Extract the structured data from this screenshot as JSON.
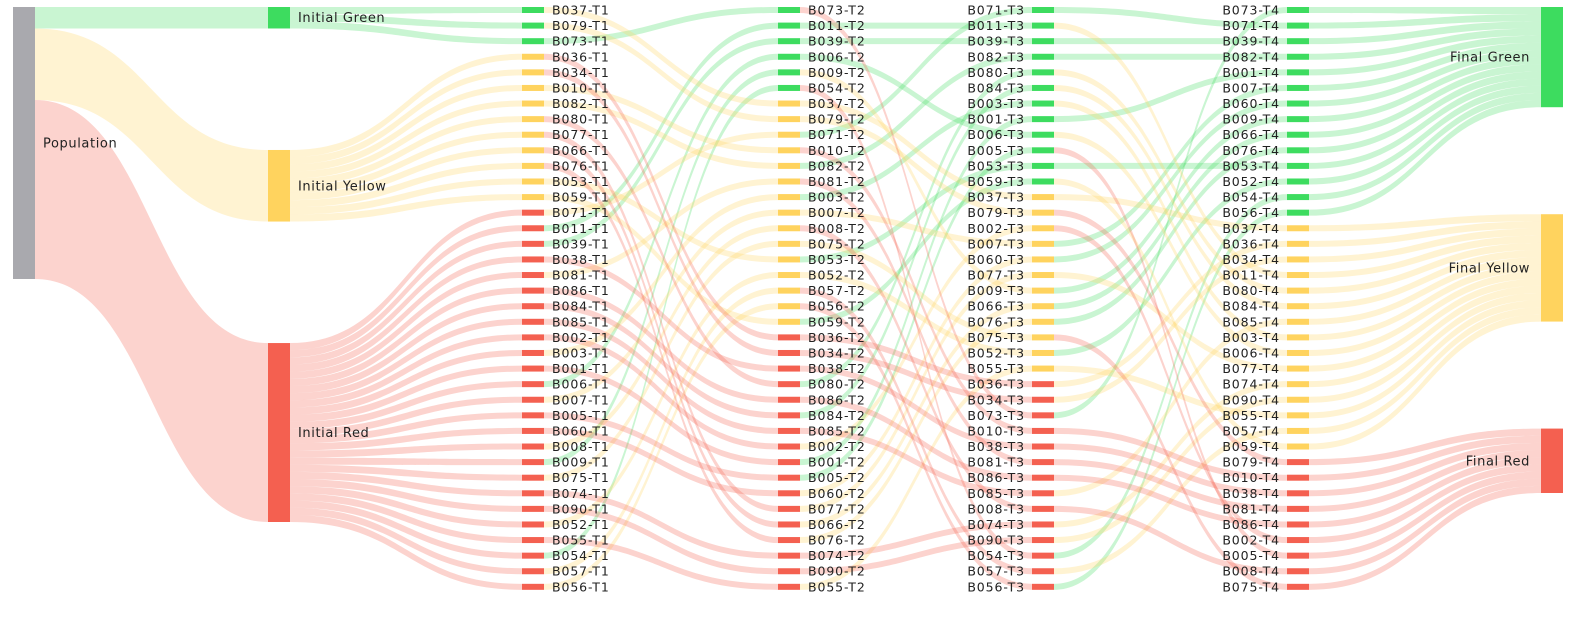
{
  "chart_data": {
    "type": "sankey",
    "columns": [
      {
        "nodes": [
          {
            "label": "Population",
            "value": 38,
            "color": "#a9a9ae"
          }
        ]
      },
      {
        "nodes": [
          {
            "label": "Initial Green",
            "value": 3,
            "color": "#3ddc5f"
          },
          {
            "label": "Initial Yellow",
            "value": 10,
            "color": "#ffd35e"
          },
          {
            "label": "Initial Red",
            "value": 25,
            "color": "#f46050"
          }
        ]
      },
      {
        "nodes": [
          {
            "label": "B037-T1",
            "value": 1,
            "color": "#3ddc5f"
          },
          {
            "label": "B079-T1",
            "value": 1,
            "color": "#3ddc5f"
          },
          {
            "label": "B073-T1",
            "value": 1,
            "color": "#3ddc5f"
          },
          {
            "label": "B036-T1",
            "value": 1,
            "color": "#ffd35e"
          },
          {
            "label": "B034-T1",
            "value": 1,
            "color": "#ffd35e"
          },
          {
            "label": "B010-T1",
            "value": 1,
            "color": "#ffd35e"
          },
          {
            "label": "B082-T1",
            "value": 1,
            "color": "#ffd35e"
          },
          {
            "label": "B080-T1",
            "value": 1,
            "color": "#ffd35e"
          },
          {
            "label": "B077-T1",
            "value": 1,
            "color": "#ffd35e"
          },
          {
            "label": "B066-T1",
            "value": 1,
            "color": "#ffd35e"
          },
          {
            "label": "B076-T1",
            "value": 1,
            "color": "#ffd35e"
          },
          {
            "label": "B053-T1",
            "value": 1,
            "color": "#ffd35e"
          },
          {
            "label": "B059-T1",
            "value": 1,
            "color": "#ffd35e"
          },
          {
            "label": "B071-T1",
            "value": 1,
            "color": "#f46050"
          },
          {
            "label": "B011-T1",
            "value": 1,
            "color": "#f46050"
          },
          {
            "label": "B039-T1",
            "value": 1,
            "color": "#f46050"
          },
          {
            "label": "B038-T1",
            "value": 1,
            "color": "#f46050"
          },
          {
            "label": "B081-T1",
            "value": 1,
            "color": "#f46050"
          },
          {
            "label": "B086-T1",
            "value": 1,
            "color": "#f46050"
          },
          {
            "label": "B084-T1",
            "value": 1,
            "color": "#f46050"
          },
          {
            "label": "B085-T1",
            "value": 1,
            "color": "#f46050"
          },
          {
            "label": "B002-T1",
            "value": 1,
            "color": "#f46050"
          },
          {
            "label": "B003-T1",
            "value": 1,
            "color": "#f46050"
          },
          {
            "label": "B001-T1",
            "value": 1,
            "color": "#f46050"
          },
          {
            "label": "B006-T1",
            "value": 1,
            "color": "#f46050"
          },
          {
            "label": "B007-T1",
            "value": 1,
            "color": "#f46050"
          },
          {
            "label": "B005-T1",
            "value": 1,
            "color": "#f46050"
          },
          {
            "label": "B060-T1",
            "value": 1,
            "color": "#f46050"
          },
          {
            "label": "B008-T1",
            "value": 1,
            "color": "#f46050"
          },
          {
            "label": "B009-T1",
            "value": 1,
            "color": "#f46050"
          },
          {
            "label": "B075-T1",
            "value": 1,
            "color": "#f46050"
          },
          {
            "label": "B074-T1",
            "value": 1,
            "color": "#f46050"
          },
          {
            "label": "B090-T1",
            "value": 1,
            "color": "#f46050"
          },
          {
            "label": "B052-T1",
            "value": 1,
            "color": "#f46050"
          },
          {
            "label": "B055-T1",
            "value": 1,
            "color": "#f46050"
          },
          {
            "label": "B054-T1",
            "value": 1,
            "color": "#f46050"
          },
          {
            "label": "B057-T1",
            "value": 1,
            "color": "#f46050"
          },
          {
            "label": "B056-T1",
            "value": 1,
            "color": "#f46050"
          }
        ]
      },
      {
        "nodes": [
          {
            "label": "B073-T2",
            "value": 1,
            "color": "#3ddc5f"
          },
          {
            "label": "B011-T2",
            "value": 1,
            "color": "#3ddc5f"
          },
          {
            "label": "B039-T2",
            "value": 1,
            "color": "#3ddc5f"
          },
          {
            "label": "B006-T2",
            "value": 1,
            "color": "#3ddc5f"
          },
          {
            "label": "B009-T2",
            "value": 1,
            "color": "#3ddc5f"
          },
          {
            "label": "B054-T2",
            "value": 1,
            "color": "#3ddc5f"
          },
          {
            "label": "B037-T2",
            "value": 1,
            "color": "#ffd35e"
          },
          {
            "label": "B079-T2",
            "value": 1,
            "color": "#ffd35e"
          },
          {
            "label": "B071-T2",
            "value": 1,
            "color": "#ffd35e"
          },
          {
            "label": "B010-T2",
            "value": 1,
            "color": "#ffd35e"
          },
          {
            "label": "B082-T2",
            "value": 1,
            "color": "#ffd35e"
          },
          {
            "label": "B081-T2",
            "value": 1,
            "color": "#ffd35e"
          },
          {
            "label": "B003-T2",
            "value": 1,
            "color": "#ffd35e"
          },
          {
            "label": "B007-T2",
            "value": 1,
            "color": "#ffd35e"
          },
          {
            "label": "B008-T2",
            "value": 1,
            "color": "#ffd35e"
          },
          {
            "label": "B075-T2",
            "value": 1,
            "color": "#ffd35e"
          },
          {
            "label": "B053-T2",
            "value": 1,
            "color": "#ffd35e"
          },
          {
            "label": "B052-T2",
            "value": 1,
            "color": "#ffd35e"
          },
          {
            "label": "B057-T2",
            "value": 1,
            "color": "#ffd35e"
          },
          {
            "label": "B056-T2",
            "value": 1,
            "color": "#ffd35e"
          },
          {
            "label": "B059-T2",
            "value": 1,
            "color": "#ffd35e"
          },
          {
            "label": "B036-T2",
            "value": 1,
            "color": "#f46050"
          },
          {
            "label": "B034-T2",
            "value": 1,
            "color": "#f46050"
          },
          {
            "label": "B038-T2",
            "value": 1,
            "color": "#f46050"
          },
          {
            "label": "B080-T2",
            "value": 1,
            "color": "#f46050"
          },
          {
            "label": "B086-T2",
            "value": 1,
            "color": "#f46050"
          },
          {
            "label": "B084-T2",
            "value": 1,
            "color": "#f46050"
          },
          {
            "label": "B085-T2",
            "value": 1,
            "color": "#f46050"
          },
          {
            "label": "B002-T2",
            "value": 1,
            "color": "#f46050"
          },
          {
            "label": "B001-T2",
            "value": 1,
            "color": "#f46050"
          },
          {
            "label": "B005-T2",
            "value": 1,
            "color": "#f46050"
          },
          {
            "label": "B060-T2",
            "value": 1,
            "color": "#f46050"
          },
          {
            "label": "B077-T2",
            "value": 1,
            "color": "#f46050"
          },
          {
            "label": "B066-T2",
            "value": 1,
            "color": "#f46050"
          },
          {
            "label": "B076-T2",
            "value": 1,
            "color": "#f46050"
          },
          {
            "label": "B074-T2",
            "value": 1,
            "color": "#f46050"
          },
          {
            "label": "B090-T2",
            "value": 1,
            "color": "#f46050"
          },
          {
            "label": "B055-T2",
            "value": 1,
            "color": "#f46050"
          }
        ]
      },
      {
        "nodes": [
          {
            "label": "B071-T3",
            "value": 1,
            "color": "#3ddc5f"
          },
          {
            "label": "B011-T3",
            "value": 1,
            "color": "#3ddc5f"
          },
          {
            "label": "B039-T3",
            "value": 1,
            "color": "#3ddc5f"
          },
          {
            "label": "B082-T3",
            "value": 1,
            "color": "#3ddc5f"
          },
          {
            "label": "B080-T3",
            "value": 1,
            "color": "#3ddc5f"
          },
          {
            "label": "B084-T3",
            "value": 1,
            "color": "#3ddc5f"
          },
          {
            "label": "B003-T3",
            "value": 1,
            "color": "#3ddc5f"
          },
          {
            "label": "B001-T3",
            "value": 1,
            "color": "#3ddc5f"
          },
          {
            "label": "B006-T3",
            "value": 1,
            "color": "#3ddc5f"
          },
          {
            "label": "B005-T3",
            "value": 1,
            "color": "#3ddc5f"
          },
          {
            "label": "B053-T3",
            "value": 1,
            "color": "#3ddc5f"
          },
          {
            "label": "B059-T3",
            "value": 1,
            "color": "#3ddc5f"
          },
          {
            "label": "B037-T3",
            "value": 1,
            "color": "#ffd35e"
          },
          {
            "label": "B079-T3",
            "value": 1,
            "color": "#ffd35e"
          },
          {
            "label": "B002-T3",
            "value": 1,
            "color": "#ffd35e"
          },
          {
            "label": "B007-T3",
            "value": 1,
            "color": "#ffd35e"
          },
          {
            "label": "B060-T3",
            "value": 1,
            "color": "#ffd35e"
          },
          {
            "label": "B077-T3",
            "value": 1,
            "color": "#ffd35e"
          },
          {
            "label": "B009-T3",
            "value": 1,
            "color": "#ffd35e"
          },
          {
            "label": "B066-T3",
            "value": 1,
            "color": "#ffd35e"
          },
          {
            "label": "B076-T3",
            "value": 1,
            "color": "#ffd35e"
          },
          {
            "label": "B075-T3",
            "value": 1,
            "color": "#ffd35e"
          },
          {
            "label": "B052-T3",
            "value": 1,
            "color": "#ffd35e"
          },
          {
            "label": "B055-T3",
            "value": 1,
            "color": "#ffd35e"
          },
          {
            "label": "B036-T3",
            "value": 1,
            "color": "#f46050"
          },
          {
            "label": "B034-T3",
            "value": 1,
            "color": "#f46050"
          },
          {
            "label": "B073-T3",
            "value": 1,
            "color": "#f46050"
          },
          {
            "label": "B010-T3",
            "value": 1,
            "color": "#f46050"
          },
          {
            "label": "B038-T3",
            "value": 1,
            "color": "#f46050"
          },
          {
            "label": "B081-T3",
            "value": 1,
            "color": "#f46050"
          },
          {
            "label": "B086-T3",
            "value": 1,
            "color": "#f46050"
          },
          {
            "label": "B085-T3",
            "value": 1,
            "color": "#f46050"
          },
          {
            "label": "B008-T3",
            "value": 1,
            "color": "#f46050"
          },
          {
            "label": "B074-T3",
            "value": 1,
            "color": "#f46050"
          },
          {
            "label": "B090-T3",
            "value": 1,
            "color": "#f46050"
          },
          {
            "label": "B054-T3",
            "value": 1,
            "color": "#f46050"
          },
          {
            "label": "B057-T3",
            "value": 1,
            "color": "#f46050"
          },
          {
            "label": "B056-T3",
            "value": 1,
            "color": "#f46050"
          }
        ]
      },
      {
        "nodes": [
          {
            "label": "B073-T4",
            "value": 1,
            "color": "#3ddc5f"
          },
          {
            "label": "B071-T4",
            "value": 1,
            "color": "#3ddc5f"
          },
          {
            "label": "B039-T4",
            "value": 1,
            "color": "#3ddc5f"
          },
          {
            "label": "B082-T4",
            "value": 1,
            "color": "#3ddc5f"
          },
          {
            "label": "B001-T4",
            "value": 1,
            "color": "#3ddc5f"
          },
          {
            "label": "B007-T4",
            "value": 1,
            "color": "#3ddc5f"
          },
          {
            "label": "B060-T4",
            "value": 1,
            "color": "#3ddc5f"
          },
          {
            "label": "B009-T4",
            "value": 1,
            "color": "#3ddc5f"
          },
          {
            "label": "B066-T4",
            "value": 1,
            "color": "#3ddc5f"
          },
          {
            "label": "B076-T4",
            "value": 1,
            "color": "#3ddc5f"
          },
          {
            "label": "B053-T4",
            "value": 1,
            "color": "#3ddc5f"
          },
          {
            "label": "B052-T4",
            "value": 1,
            "color": "#3ddc5f"
          },
          {
            "label": "B054-T4",
            "value": 1,
            "color": "#3ddc5f"
          },
          {
            "label": "B056-T4",
            "value": 1,
            "color": "#3ddc5f"
          },
          {
            "label": "B037-T4",
            "value": 1,
            "color": "#ffd35e"
          },
          {
            "label": "B036-T4",
            "value": 1,
            "color": "#ffd35e"
          },
          {
            "label": "B034-T4",
            "value": 1,
            "color": "#ffd35e"
          },
          {
            "label": "B011-T4",
            "value": 1,
            "color": "#ffd35e"
          },
          {
            "label": "B080-T4",
            "value": 1,
            "color": "#ffd35e"
          },
          {
            "label": "B084-T4",
            "value": 1,
            "color": "#ffd35e"
          },
          {
            "label": "B085-T4",
            "value": 1,
            "color": "#ffd35e"
          },
          {
            "label": "B003-T4",
            "value": 1,
            "color": "#ffd35e"
          },
          {
            "label": "B006-T4",
            "value": 1,
            "color": "#ffd35e"
          },
          {
            "label": "B077-T4",
            "value": 1,
            "color": "#ffd35e"
          },
          {
            "label": "B074-T4",
            "value": 1,
            "color": "#ffd35e"
          },
          {
            "label": "B090-T4",
            "value": 1,
            "color": "#ffd35e"
          },
          {
            "label": "B055-T4",
            "value": 1,
            "color": "#ffd35e"
          },
          {
            "label": "B057-T4",
            "value": 1,
            "color": "#ffd35e"
          },
          {
            "label": "B059-T4",
            "value": 1,
            "color": "#ffd35e"
          },
          {
            "label": "B079-T4",
            "value": 1,
            "color": "#f46050"
          },
          {
            "label": "B010-T4",
            "value": 1,
            "color": "#f46050"
          },
          {
            "label": "B038-T4",
            "value": 1,
            "color": "#f46050"
          },
          {
            "label": "B081-T4",
            "value": 1,
            "color": "#f46050"
          },
          {
            "label": "B086-T4",
            "value": 1,
            "color": "#f46050"
          },
          {
            "label": "B002-T4",
            "value": 1,
            "color": "#f46050"
          },
          {
            "label": "B005-T4",
            "value": 1,
            "color": "#f46050"
          },
          {
            "label": "B008-T4",
            "value": 1,
            "color": "#f46050"
          },
          {
            "label": "B075-T4",
            "value": 1,
            "color": "#f46050"
          }
        ]
      },
      {
        "nodes": [
          {
            "label": "Final Green",
            "value": 14,
            "color": "#3ddc5f"
          },
          {
            "label": "Final Yellow",
            "value": 15,
            "color": "#ffd35e"
          },
          {
            "label": "Final Red",
            "value": 9,
            "color": "#f46050"
          }
        ]
      }
    ]
  }
}
